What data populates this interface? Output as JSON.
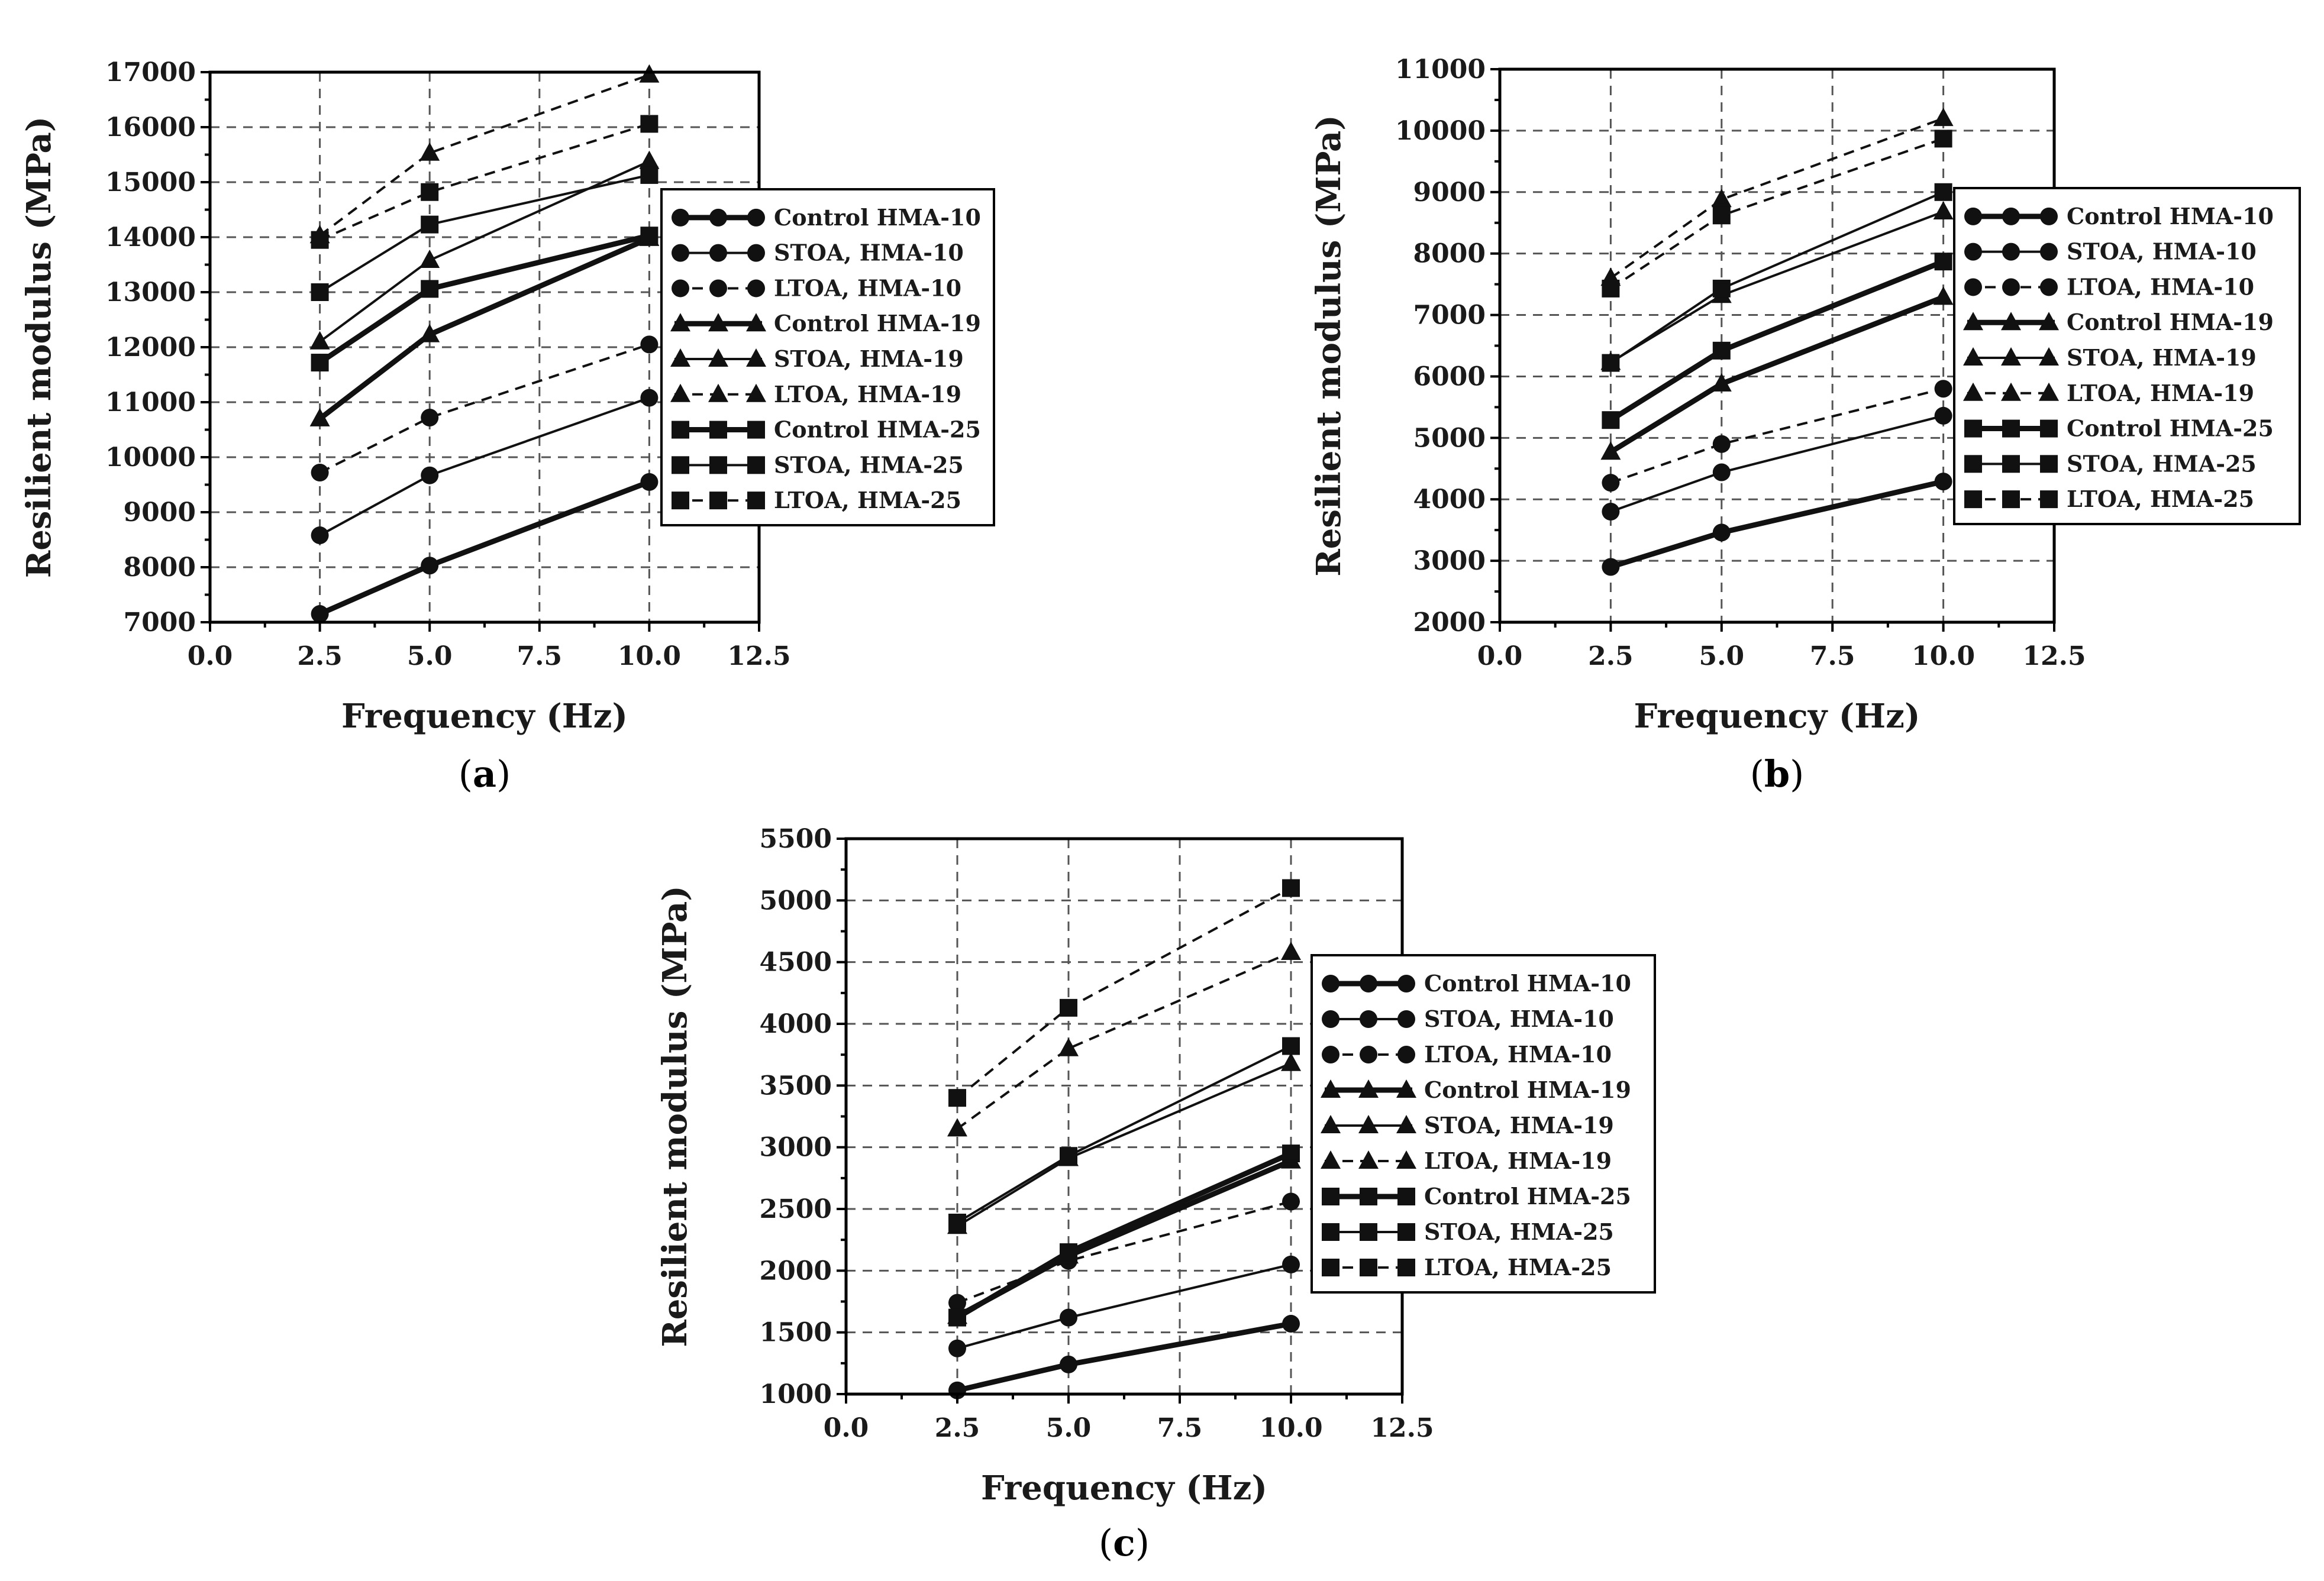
{
  "chart_data": [
    {
      "type": "line",
      "panel_label": "a",
      "xlabel": "Frequency (Hz)",
      "ylabel": "Resilient modulus (MPa)",
      "xlim": [
        0,
        12.5
      ],
      "ylim": [
        7000,
        17000
      ],
      "xticks": [
        0,
        2.5,
        5,
        7.5,
        10,
        12.5
      ],
      "xtick_labels": [
        "0.0",
        "2.5",
        "5.0",
        "7.5",
        "10.0",
        "12.5"
      ],
      "yticks": [
        7000,
        8000,
        9000,
        10000,
        11000,
        12000,
        13000,
        14000,
        15000,
        16000,
        17000
      ],
      "ytick_labels": [
        "7000",
        "8000",
        "9000",
        "10000",
        "11000",
        "12000",
        "13000",
        "14000",
        "15000",
        "16000",
        "17000"
      ],
      "grid": true,
      "legend_position": "center-right",
      "x": [
        2.5,
        5,
        10
      ],
      "series": [
        {
          "name": "Control HMA-10",
          "marker": "circle",
          "style": "solid-thick",
          "values": [
            7150,
            8030,
            9550
          ]
        },
        {
          "name": "STOA, HMA-10",
          "marker": "circle",
          "style": "solid-thin",
          "values": [
            8580,
            9670,
            11080
          ]
        },
        {
          "name": "LTOA, HMA-10",
          "marker": "circle",
          "style": "dashed",
          "values": [
            9720,
            10720,
            12050
          ]
        },
        {
          "name": "Control HMA-19",
          "marker": "triangle",
          "style": "solid-thick",
          "values": [
            10700,
            12230,
            13980
          ]
        },
        {
          "name": "STOA, HMA-19",
          "marker": "triangle",
          "style": "solid-thin",
          "values": [
            12100,
            13580,
            15380
          ]
        },
        {
          "name": "LTOA, HMA-19",
          "marker": "triangle",
          "style": "dashed",
          "values": [
            14030,
            15530,
            16950
          ]
        },
        {
          "name": "Control HMA-25",
          "marker": "square",
          "style": "solid-thick",
          "values": [
            11720,
            13060,
            14030
          ]
        },
        {
          "name": "STOA, HMA-25",
          "marker": "square",
          "style": "solid-thin",
          "values": [
            13000,
            14230,
            15130
          ]
        },
        {
          "name": "LTOA, HMA-25",
          "marker": "square",
          "style": "dashed",
          "values": [
            13950,
            14820,
            16060
          ]
        }
      ]
    },
    {
      "type": "line",
      "panel_label": "b",
      "xlabel": "Frequency (Hz)",
      "ylabel": "Resilient modulus (MPa)",
      "xlim": [
        0,
        12.5
      ],
      "ylim": [
        2000,
        11000
      ],
      "xticks": [
        0,
        2.5,
        5,
        7.5,
        10,
        12.5
      ],
      "xtick_labels": [
        "0.0",
        "2.5",
        "5.0",
        "7.5",
        "10.0",
        "12.5"
      ],
      "yticks": [
        2000,
        3000,
        4000,
        5000,
        6000,
        7000,
        8000,
        9000,
        10000,
        11000
      ],
      "ytick_labels": [
        "2000",
        "3000",
        "4000",
        "5000",
        "6000",
        "7000",
        "8000",
        "9000",
        "10000",
        "11000"
      ],
      "grid": true,
      "legend_position": "right",
      "x": [
        2.5,
        5,
        10
      ],
      "series": [
        {
          "name": "Control HMA-10",
          "marker": "circle",
          "style": "solid-thick",
          "values": [
            2900,
            3460,
            4290
          ]
        },
        {
          "name": "STOA, HMA-10",
          "marker": "circle",
          "style": "solid-thin",
          "values": [
            3800,
            4440,
            5360
          ]
        },
        {
          "name": "LTOA, HMA-10",
          "marker": "circle",
          "style": "dashed",
          "values": [
            4270,
            4900,
            5800
          ]
        },
        {
          "name": "Control HMA-19",
          "marker": "triangle",
          "style": "solid-thick",
          "values": [
            4770,
            5880,
            7290
          ]
        },
        {
          "name": "STOA, HMA-19",
          "marker": "triangle",
          "style": "solid-thin",
          "values": [
            6230,
            7320,
            8680
          ]
        },
        {
          "name": "LTOA, HMA-19",
          "marker": "triangle",
          "style": "dashed",
          "values": [
            7600,
            8880,
            10200
          ]
        },
        {
          "name": "Control HMA-25",
          "marker": "square",
          "style": "solid-thick",
          "values": [
            5290,
            6420,
            7870
          ]
        },
        {
          "name": "STOA, HMA-25",
          "marker": "square",
          "style": "solid-thin",
          "values": [
            6220,
            7430,
            9000
          ]
        },
        {
          "name": "LTOA, HMA-25",
          "marker": "square",
          "style": "dashed",
          "values": [
            7430,
            8620,
            9870
          ]
        }
      ]
    },
    {
      "type": "line",
      "panel_label": "c",
      "xlabel": "Frequency (Hz)",
      "ylabel": "Resilient modulus (MPa)",
      "xlim": [
        0,
        12.5
      ],
      "ylim": [
        1000,
        5500
      ],
      "xticks": [
        0,
        2.5,
        5,
        7.5,
        10,
        12.5
      ],
      "xtick_labels": [
        "0.0",
        "2.5",
        "5.0",
        "7.5",
        "10.0",
        "12.5"
      ],
      "yticks": [
        1000,
        1500,
        2000,
        2500,
        3000,
        3500,
        4000,
        4500,
        5000,
        5500
      ],
      "ytick_labels": [
        "1000",
        "1500",
        "2000",
        "2500",
        "3000",
        "3500",
        "4000",
        "4500",
        "5000",
        "5500"
      ],
      "grid": true,
      "legend_position": "right",
      "x": [
        2.5,
        5,
        10
      ],
      "series": [
        {
          "name": "Control HMA-10",
          "marker": "circle",
          "style": "solid-thick",
          "values": [
            1030,
            1240,
            1570
          ]
        },
        {
          "name": "STOA, HMA-10",
          "marker": "circle",
          "style": "solid-thin",
          "values": [
            1370,
            1620,
            2050
          ]
        },
        {
          "name": "LTOA, HMA-10",
          "marker": "circle",
          "style": "dashed",
          "values": [
            1740,
            2080,
            2560
          ]
        },
        {
          "name": "Control HMA-19",
          "marker": "triangle",
          "style": "solid-thick",
          "values": [
            1630,
            2120,
            2890
          ]
        },
        {
          "name": "STOA, HMA-19",
          "marker": "triangle",
          "style": "solid-thin",
          "values": [
            2360,
            2910,
            3680
          ]
        },
        {
          "name": "LTOA, HMA-19",
          "marker": "triangle",
          "style": "dashed",
          "values": [
            3150,
            3800,
            4580
          ]
        },
        {
          "name": "Control HMA-25",
          "marker": "square",
          "style": "solid-thick",
          "values": [
            1620,
            2150,
            2950
          ]
        },
        {
          "name": "STOA, HMA-25",
          "marker": "square",
          "style": "solid-thin",
          "values": [
            2390,
            2930,
            3820
          ]
        },
        {
          "name": "LTOA, HMA-25",
          "marker": "square",
          "style": "dashed",
          "values": [
            3400,
            4130,
            5100
          ]
        }
      ]
    }
  ]
}
